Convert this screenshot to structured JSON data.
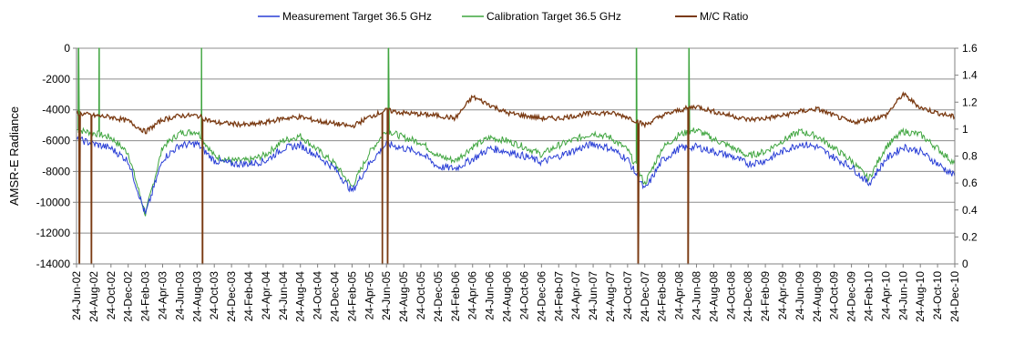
{
  "chart_data": {
    "type": "line",
    "title": "",
    "xlabel": "",
    "ylabel": "AMSR-E Radiance",
    "y2label": "",
    "ylim": [
      -14000,
      0
    ],
    "y2lim": [
      0,
      1.6
    ],
    "yticks": [
      0,
      -2000,
      -4000,
      -6000,
      -8000,
      -10000,
      -12000,
      -14000
    ],
    "y2ticks": [
      0,
      0.2,
      0.4,
      0.6,
      0.8,
      1,
      1.2,
      1.4,
      1.6
    ],
    "grid": "horizontal",
    "legend_position": "top",
    "x_categories": [
      "24-Jun-02",
      "24-Aug-02",
      "24-Oct-02",
      "24-Dec-02",
      "24-Feb-03",
      "24-Apr-03",
      "24-Jun-03",
      "24-Aug-03",
      "24-Oct-03",
      "24-Dec-03",
      "24-Feb-04",
      "24-Apr-04",
      "24-Jun-04",
      "24-Aug-04",
      "24-Oct-04",
      "24-Dec-04",
      "24-Feb-05",
      "24-Apr-05",
      "24-Jun-05",
      "24-Aug-05",
      "24-Oct-05",
      "24-Dec-05",
      "24-Feb-06",
      "24-Apr-06",
      "24-Jun-06",
      "24-Aug-06",
      "24-Oct-06",
      "24-Dec-06",
      "24-Feb-07",
      "24-Apr-07",
      "24-Jun-07",
      "24-Aug-07",
      "24-Oct-07",
      "24-Dec-07",
      "24-Feb-08",
      "24-Apr-08",
      "24-Jun-08",
      "24-Aug-08",
      "24-Oct-08",
      "24-Dec-08",
      "24-Feb-09",
      "24-Apr-09",
      "24-Jun-09",
      "24-Aug-09",
      "24-Oct-09",
      "24-Dec-09",
      "24-Feb-10",
      "24-Apr-10",
      "24-Jun-10",
      "24-Aug-10",
      "24-Oct-10",
      "24-Dec-10"
    ],
    "series": [
      {
        "name": "Measurement Target 36.5 GHz",
        "axis": "left",
        "color": "#2a3fd6",
        "values": [
          -5900,
          -6200,
          -6500,
          -7300,
          -10800,
          -7200,
          -6300,
          -6200,
          -7300,
          -7500,
          -7500,
          -7300,
          -6500,
          -6300,
          -7000,
          -7800,
          -9300,
          -7500,
          -6200,
          -6500,
          -6800,
          -7700,
          -7800,
          -7200,
          -6500,
          -6700,
          -7000,
          -7400,
          -7000,
          -6600,
          -6200,
          -6500,
          -7200,
          -9200,
          -7300,
          -6500,
          -6400,
          -6700,
          -7000,
          -7500,
          -7300,
          -6700,
          -6200,
          -6400,
          -7100,
          -7700,
          -8800,
          -7200,
          -6400,
          -6700,
          -7500,
          -8300
        ]
      },
      {
        "name": "Calibration Target 36.5 GHz",
        "axis": "left",
        "color": "#3fa53f",
        "values": [
          -5300,
          -5500,
          -5800,
          -6800,
          -10800,
          -6400,
          -5500,
          -5400,
          -7000,
          -7300,
          -7300,
          -6900,
          -6000,
          -5700,
          -6600,
          -7500,
          -9000,
          -6800,
          -5300,
          -5800,
          -6100,
          -7000,
          -7300,
          -6400,
          -5800,
          -6000,
          -6400,
          -6900,
          -6300,
          -5900,
          -5500,
          -5800,
          -6600,
          -8800,
          -6500,
          -5600,
          -5300,
          -5900,
          -6400,
          -7000,
          -6700,
          -6000,
          -5400,
          -5700,
          -6500,
          -7300,
          -8500,
          -6400,
          -5400,
          -5600,
          -6500,
          -7500
        ]
      },
      {
        "name": "M/C Ratio",
        "axis": "right",
        "color": "#7a3a12",
        "values": [
          1.12,
          1.1,
          1.09,
          1.06,
          0.98,
          1.07,
          1.1,
          1.1,
          1.05,
          1.04,
          1.03,
          1.05,
          1.08,
          1.09,
          1.06,
          1.04,
          1.02,
          1.09,
          1.14,
          1.12,
          1.11,
          1.1,
          1.08,
          1.24,
          1.18,
          1.12,
          1.1,
          1.08,
          1.08,
          1.1,
          1.12,
          1.12,
          1.09,
          1.03,
          1.1,
          1.14,
          1.17,
          1.13,
          1.1,
          1.07,
          1.08,
          1.1,
          1.13,
          1.15,
          1.1,
          1.05,
          1.07,
          1.1,
          1.26,
          1.16,
          1.12,
          1.09
        ]
      }
    ],
    "ratio_drops": [
      {
        "at": 0.15,
        "value": 0
      },
      {
        "at": 0.85,
        "value": 0
      },
      {
        "at": 7.3,
        "value": 0
      },
      {
        "at": 17.75,
        "value": 0
      },
      {
        "at": 18.05,
        "value": 0
      },
      {
        "at": 32.6,
        "value": 0
      },
      {
        "at": 35.5,
        "value": 0
      }
    ],
    "calibration_spikes": [
      {
        "at": 0.1,
        "value": 0
      },
      {
        "at": 1.3,
        "value": 0
      },
      {
        "at": 7.25,
        "value": 0
      },
      {
        "at": 18.1,
        "value": 0
      },
      {
        "at": 32.5,
        "value": 0
      },
      {
        "at": 35.55,
        "value": 0
      }
    ]
  }
}
